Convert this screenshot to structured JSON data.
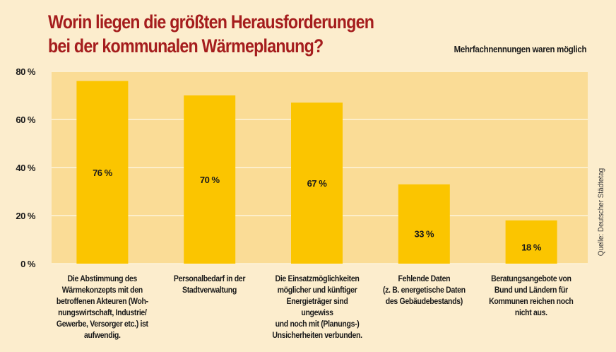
{
  "chart_data": {
    "type": "bar",
    "title": "Worin liegen die größten Herausforderungen\nbei der kommunalen Wärmeplanung?",
    "title_lines": [
      "Worin liegen die größten Herausforderungen",
      "bei der kommunalen Wärmeplanung?"
    ],
    "subtitle": "Mehrfachnennungen waren möglich",
    "source": "Quelle: Deutscher Städtetag",
    "xlabel": "",
    "ylabel": "",
    "ylim": [
      0,
      80
    ],
    "grid": true,
    "yticks": [
      0,
      20,
      40,
      60,
      80
    ],
    "ytick_labels": [
      "0 %",
      "20 %",
      "40 %",
      "60 %",
      "80 %"
    ],
    "categories": [
      "Die Abstimmung des\nWärmekonzepts mit den\nbetroffenen Akteuren (Woh-\nnungswirtschaft, Industrie/\nGewerbe, Versorger etc.) ist\naufwendig.",
      "Personalbedarf in der\nStadtverwaltung",
      "Die Einsatzmöglichkeiten\nmöglicher und künftiger\nEnergieträger sind ungewiss\nund noch mit (Planungs-)\nUnsicherheiten verbunden.",
      "Fehlende Daten\n(z. B. energetische Daten\ndes Gebäudebestands)",
      "Beratungsangebote von\nBund und Ländern für\nKommunen reichen noch\nnicht aus."
    ],
    "values": [
      76,
      70,
      67,
      33,
      18
    ],
    "data_labels": [
      "76 %",
      "70 %",
      "67 %",
      "33 %",
      "18 %"
    ],
    "colors": {
      "background": "#fcedcd",
      "plot_background": "#fadc96",
      "gridline": "#fdf3dc",
      "bar": "#fbc500",
      "title": "#a51d1d",
      "text": "#1a1a1a"
    }
  }
}
